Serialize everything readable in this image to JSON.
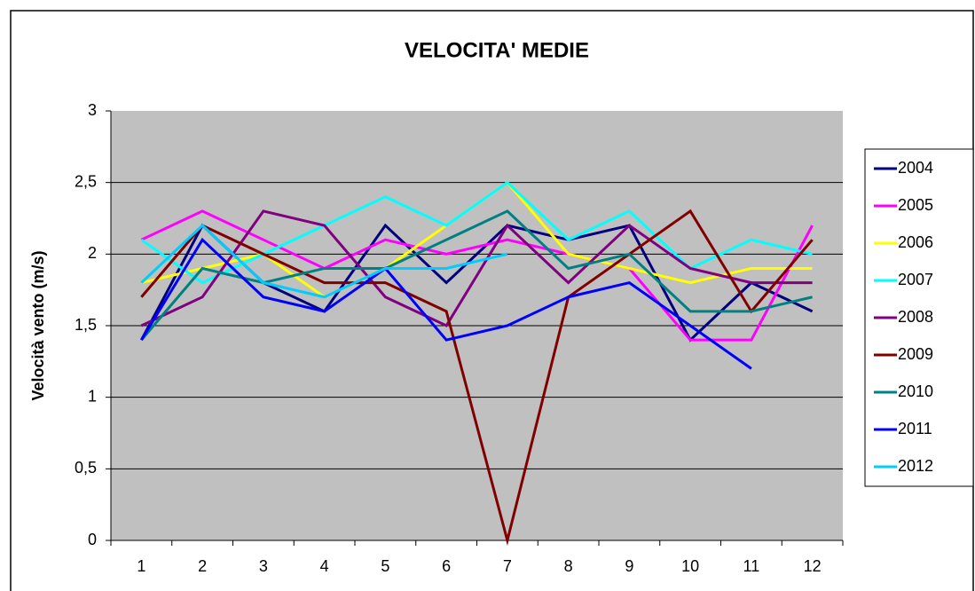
{
  "chart_data": {
    "type": "line",
    "title": "VELOCITA' MEDIE",
    "y_label": "Velocità vento (m/s)",
    "categories": [
      "1",
      "2",
      "3",
      "4",
      "5",
      "6",
      "7",
      "8",
      "9",
      "10",
      "11",
      "12"
    ],
    "ylim": [
      0,
      3
    ],
    "yticks": [
      0,
      {
        "value": 0.5,
        "label": "0,5"
      },
      1,
      {
        "value": 1.5,
        "label": "1,5"
      },
      2,
      {
        "value": 2.5,
        "label": "2,5"
      },
      3
    ],
    "grid": true,
    "legend": "right",
    "series": [
      {
        "name": "2004",
        "color": "#000080",
        "values": [
          1.4,
          2.2,
          1.8,
          1.6,
          2.2,
          1.8,
          2.2,
          2.1,
          2.2,
          1.4,
          1.8,
          1.6
        ]
      },
      {
        "name": "2005",
        "color": "#ff00ff",
        "values": [
          2.1,
          2.3,
          2.1,
          1.9,
          2.1,
          2.0,
          2.1,
          2.0,
          1.9,
          1.4,
          1.4,
          2.2
        ]
      },
      {
        "name": "2006",
        "color": "#ffff00",
        "values": [
          1.8,
          1.9,
          2.0,
          1.7,
          1.9,
          2.2,
          2.5,
          2.0,
          1.9,
          1.8,
          1.9,
          1.9
        ]
      },
      {
        "name": "2007",
        "color": "#00ffff",
        "values": [
          2.1,
          1.8,
          2.0,
          2.2,
          2.4,
          2.2,
          2.5,
          2.1,
          2.3,
          1.9,
          2.1,
          2.0
        ]
      },
      {
        "name": "2008",
        "color": "#800080",
        "values": [
          1.5,
          1.7,
          2.3,
          2.2,
          1.7,
          1.5,
          2.2,
          1.8,
          2.2,
          1.9,
          1.8,
          1.8
        ]
      },
      {
        "name": "2009",
        "color": "#800000",
        "values": [
          1.7,
          2.2,
          2.0,
          1.8,
          1.8,
          1.6,
          0,
          1.7,
          2.0,
          2.3,
          1.6,
          2.1
        ]
      },
      {
        "name": "2010",
        "color": "#008080",
        "values": [
          1.4,
          1.9,
          1.8,
          1.9,
          1.9,
          2.1,
          2.3,
          1.9,
          2.0,
          1.6,
          1.6,
          1.7
        ]
      },
      {
        "name": "2011",
        "color": "#0000ff",
        "values": [
          1.4,
          2.1,
          1.7,
          1.6,
          1.9,
          1.4,
          1.5,
          1.7,
          1.8,
          1.5,
          1.2,
          null
        ]
      },
      {
        "name": "2012",
        "color": "#00ccff",
        "values": [
          1.8,
          2.2,
          1.8,
          1.7,
          1.9,
          1.9,
          2.0,
          null,
          null,
          null,
          null,
          null
        ]
      }
    ]
  }
}
